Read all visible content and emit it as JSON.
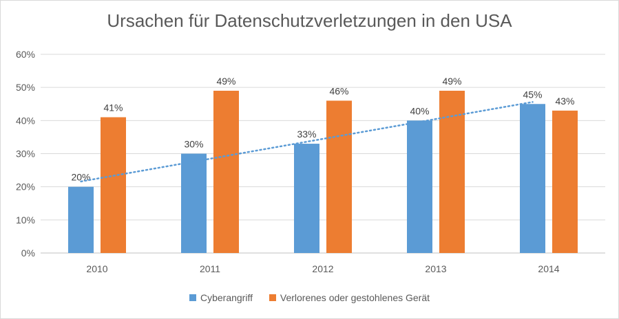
{
  "chart_data": {
    "type": "bar",
    "title": "Ursachen für Datenschutzverletzungen in den USA",
    "categories": [
      "2010",
      "2011",
      "2012",
      "2013",
      "2014"
    ],
    "series": [
      {
        "name": "Cyberangriff",
        "values": [
          20,
          30,
          33,
          40,
          45
        ],
        "labels": [
          "20%",
          "30%",
          "33%",
          "40%",
          "45%"
        ],
        "color": "#5b9bd5"
      },
      {
        "name": "Verlorenes oder gestohlenes Gerät",
        "values": [
          41,
          49,
          46,
          49,
          43
        ],
        "labels": [
          "41%",
          "49%",
          "46%",
          "49%",
          "43%"
        ],
        "color": "#ed7d31"
      }
    ],
    "trendline": {
      "series": "Cyberangriff",
      "type": "linear",
      "style": "dotted",
      "color": "#5b9bd5"
    },
    "ylim": [
      0,
      60
    ],
    "yticks": [
      0,
      10,
      20,
      30,
      40,
      50,
      60
    ],
    "ytick_labels": [
      "0%",
      "10%",
      "20%",
      "30%",
      "40%",
      "50%",
      "60%"
    ],
    "xlabel": "",
    "ylabel": "",
    "grid": true,
    "legend_position": "bottom"
  }
}
